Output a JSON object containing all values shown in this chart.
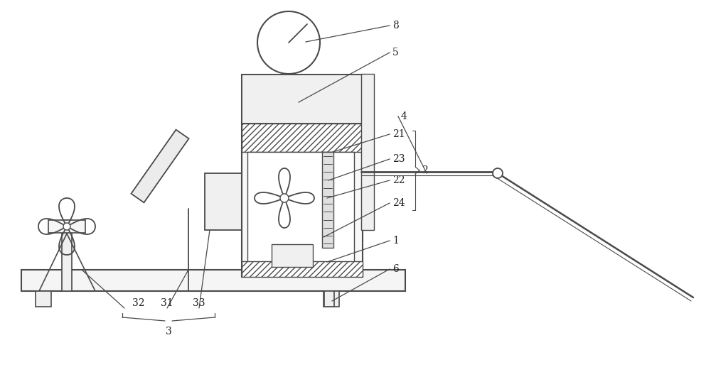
{
  "bg_color": "#ffffff",
  "line_color": "#4a4a4a",
  "label_color": "#222222",
  "fig_width": 10.0,
  "fig_height": 5.24,
  "dpi": 100
}
